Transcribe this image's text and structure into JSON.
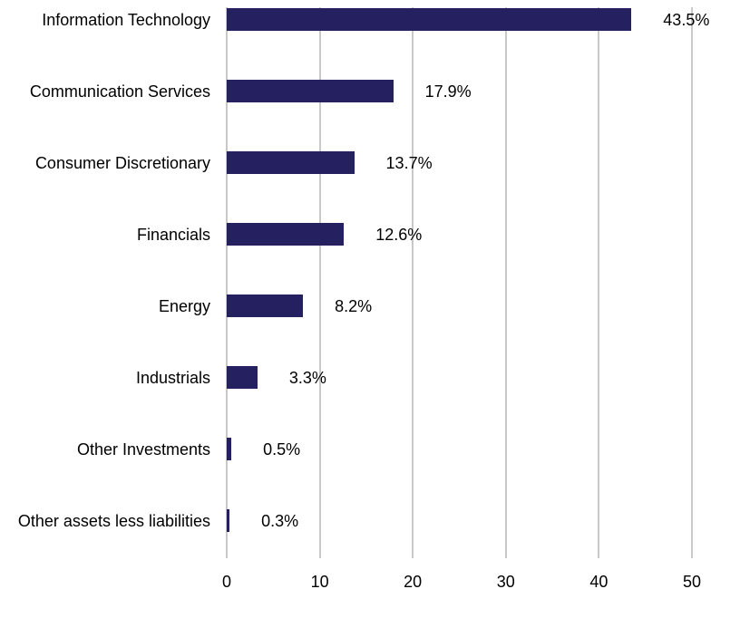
{
  "chart_data": {
    "type": "bar",
    "orientation": "horizontal",
    "title": "",
    "xlabel": "",
    "ylabel": "",
    "categories": [
      "Information Technology",
      "Communication Services",
      "Consumer Discretionary",
      "Financials",
      "Energy",
      "Industrials",
      "Other Investments",
      "Other assets less liabilities"
    ],
    "values": [
      43.5,
      17.9,
      13.7,
      12.6,
      8.2,
      3.3,
      0.5,
      0.3
    ],
    "value_labels": [
      "43.5%",
      "17.9%",
      "13.7%",
      "12.6%",
      "8.2%",
      "3.3%",
      "0.5%",
      "0.3%"
    ],
    "x_ticks": [
      "0",
      "10",
      "20",
      "30",
      "40",
      "50"
    ],
    "x_tick_values": [
      0,
      10,
      20,
      30,
      40,
      50
    ],
    "xlim": [
      0,
      50
    ],
    "grid": true,
    "legend": false,
    "colors": {
      "bar": "#25205f",
      "gridline": "#c9c9c9",
      "text": "#000000",
      "background": "#ffffff"
    }
  }
}
